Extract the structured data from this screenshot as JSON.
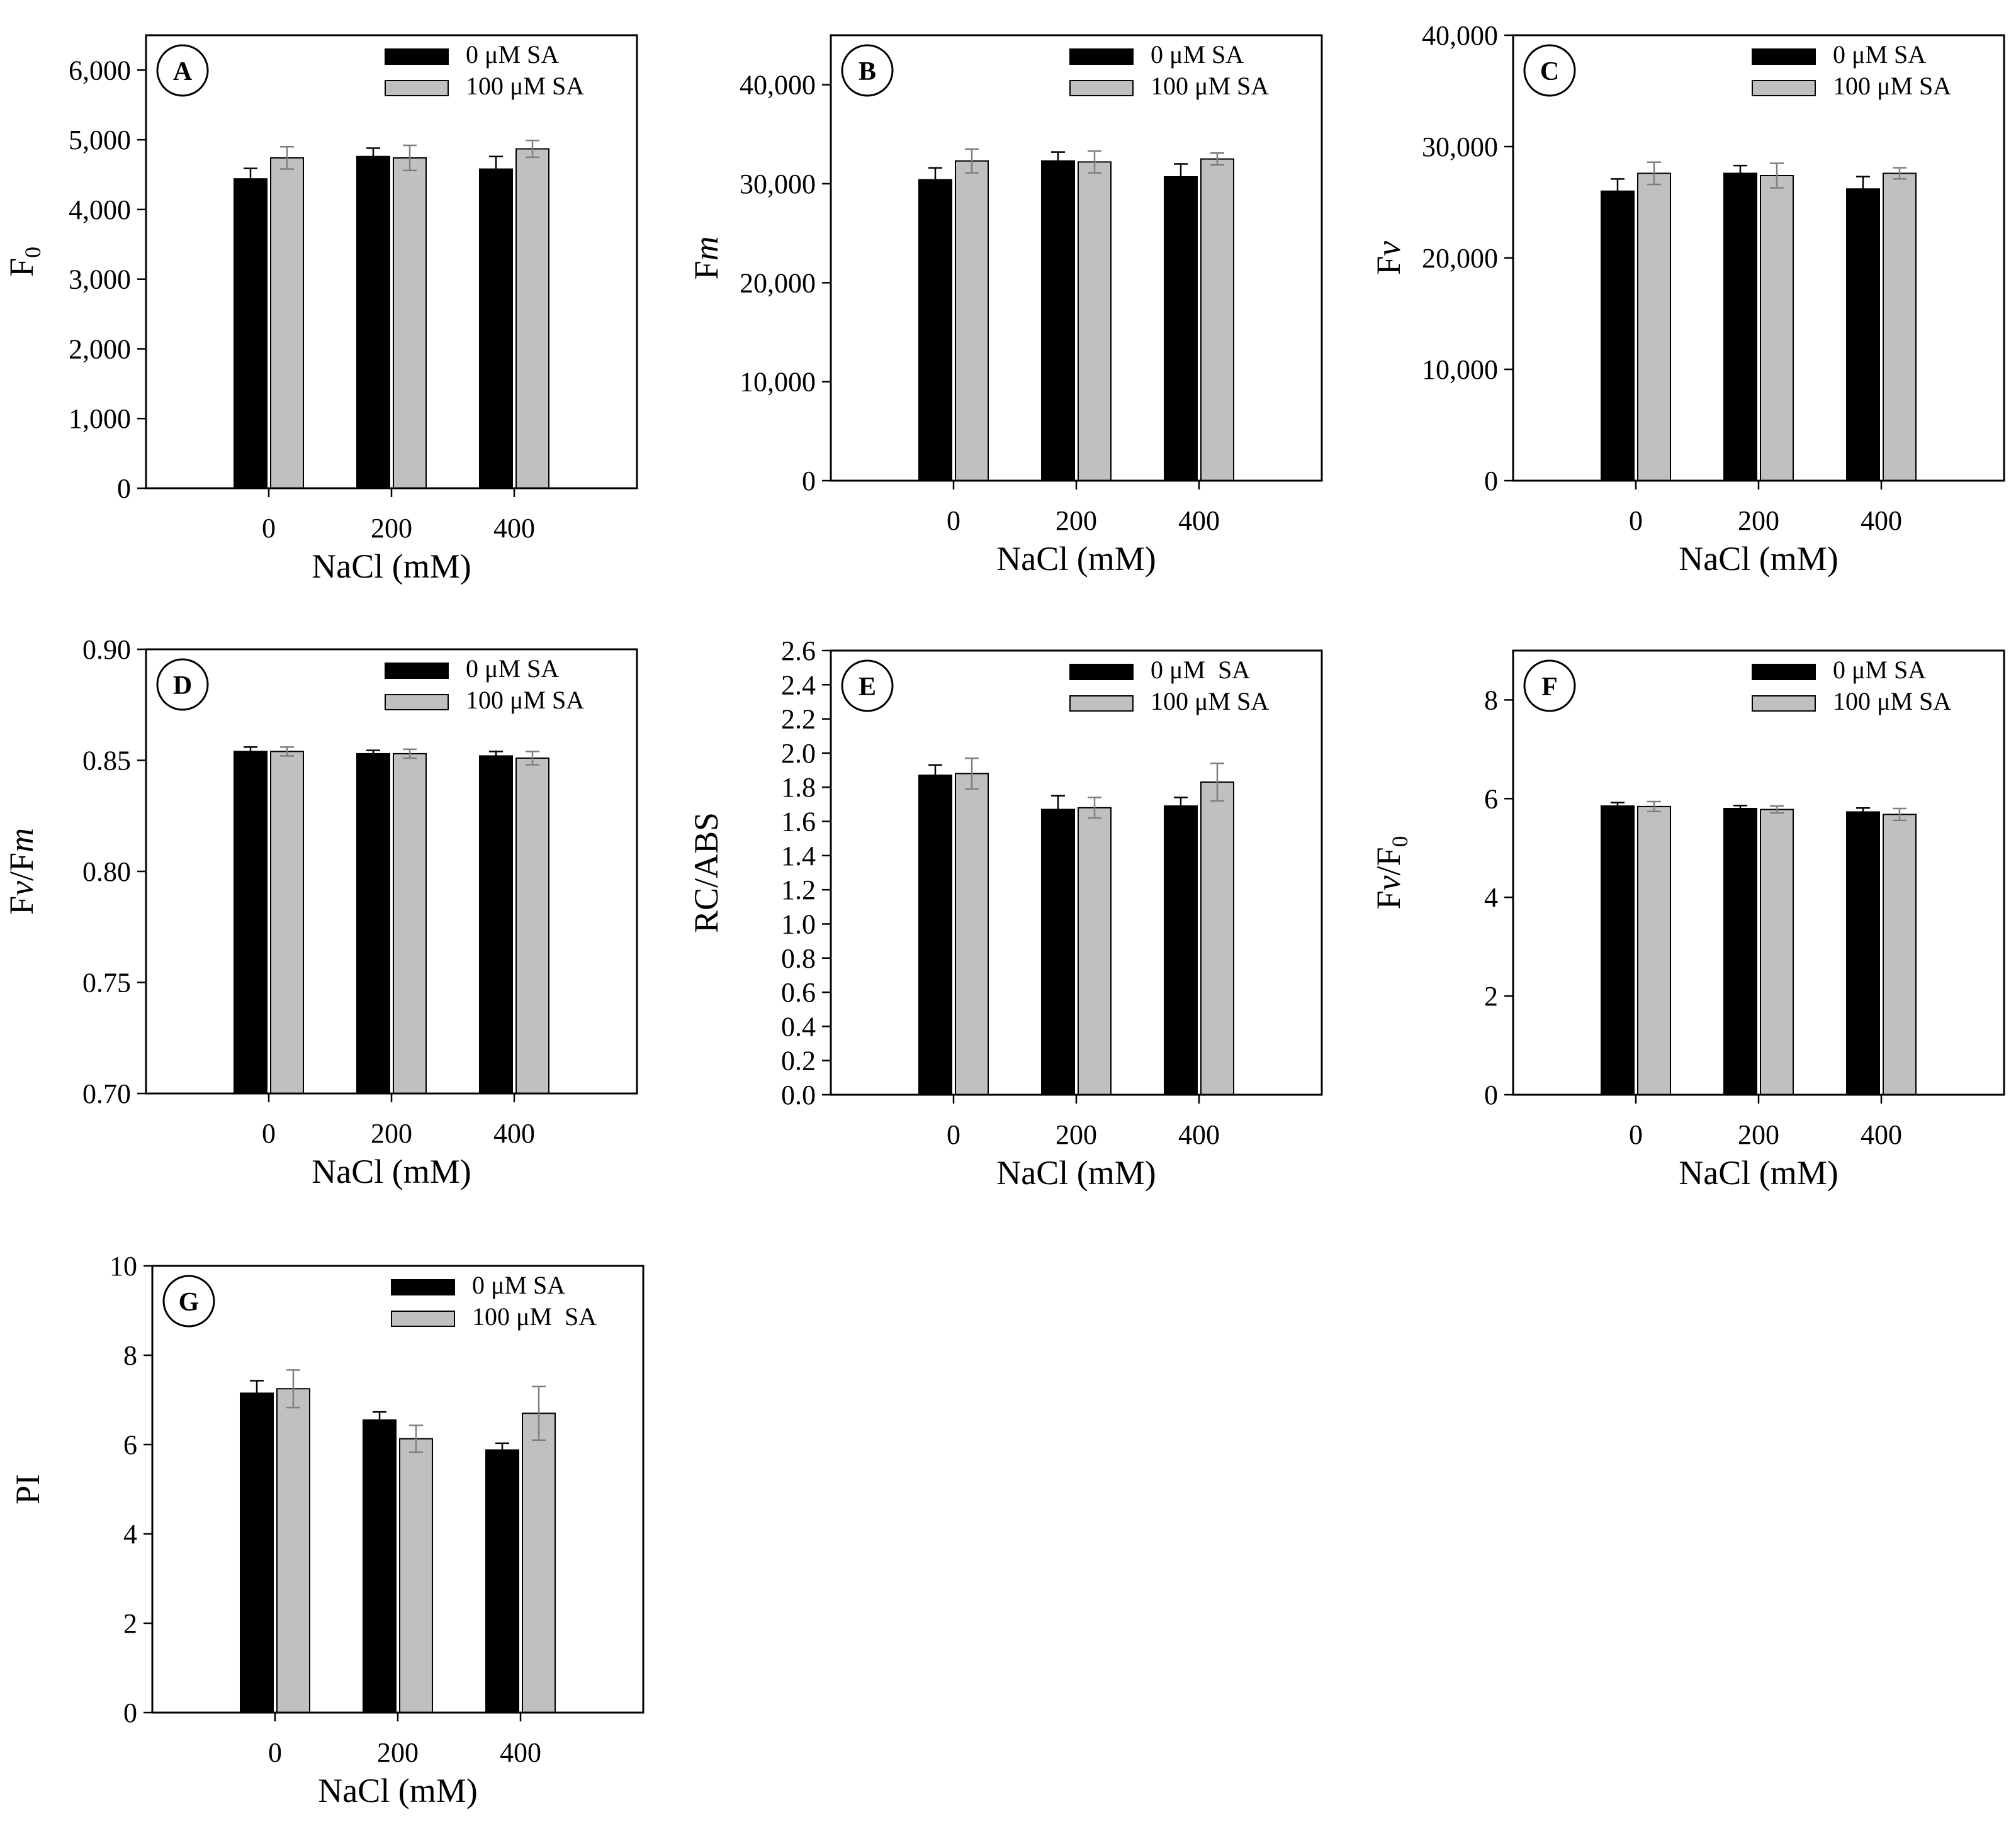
{
  "colors": {
    "series_0": "#000000",
    "series_100": "#c0c0c0",
    "error_bar_0": "#000000",
    "error_bar_100": "#7f7f7f"
  },
  "chart_data": [
    {
      "type": "bar",
      "panel_label": "A",
      "ylabel": "F0",
      "ylabel_main": "F",
      "ylabel_sub": "0",
      "ylabel_italic": false,
      "xlabel": "NaCl (mM)",
      "categories": [
        "0",
        "200",
        "400"
      ],
      "ylim": [
        0,
        6500
      ],
      "yticks": [
        0,
        1000,
        2000,
        3000,
        4000,
        5000,
        6000
      ],
      "ytick_labels": [
        "0",
        "1,000",
        "2,000",
        "3,000",
        "4,000",
        "5,000",
        "6,000"
      ],
      "grid": false,
      "legend_position": "top-right",
      "series": [
        {
          "name": "0 μM SA",
          "values": [
            4440,
            4760,
            4580
          ],
          "errors": [
            150,
            120,
            180
          ]
        },
        {
          "name": "100 μM SA",
          "values": [
            4740,
            4740,
            4870
          ],
          "errors": [
            160,
            180,
            120
          ]
        }
      ]
    },
    {
      "type": "bar",
      "panel_label": "B",
      "ylabel": "Fm",
      "ylabel_main": "F",
      "ylabel_italic_part": "m",
      "xlabel": "NaCl (mM)",
      "categories": [
        "0",
        "200",
        "400"
      ],
      "ylim": [
        0,
        45000
      ],
      "yticks": [
        0,
        10000,
        20000,
        30000,
        40000
      ],
      "ytick_labels": [
        "0",
        "10,000",
        "20,000",
        "30,000",
        "40,000"
      ],
      "grid": false,
      "legend_position": "top-right",
      "series": [
        {
          "name": "0 μM SA",
          "values": [
            30400,
            32300,
            30700
          ],
          "errors": [
            1200,
            900,
            1300
          ]
        },
        {
          "name": "100 μM SA",
          "values": [
            32300,
            32200,
            32500
          ],
          "errors": [
            1200,
            1100,
            600
          ]
        }
      ]
    },
    {
      "type": "bar",
      "panel_label": "C",
      "ylabel": "Fv",
      "ylabel_main": "F",
      "ylabel_italic_part": "v",
      "xlabel": "NaCl (mM)",
      "categories": [
        "0",
        "200",
        "400"
      ],
      "ylim": [
        0,
        40000
      ],
      "yticks": [
        0,
        10000,
        20000,
        30000,
        40000
      ],
      "ytick_labels": [
        "0",
        "10,000",
        "20,000",
        "30,000",
        "40,000"
      ],
      "grid": false,
      "legend_position": "top-right",
      "series": [
        {
          "name": "0 μM SA",
          "values": [
            26000,
            27600,
            26200
          ],
          "errors": [
            1100,
            700,
            1100
          ]
        },
        {
          "name": "100 μM SA",
          "values": [
            27600,
            27400,
            27600
          ],
          "errors": [
            1000,
            1100,
            500
          ]
        }
      ]
    },
    {
      "type": "bar",
      "panel_label": "D",
      "ylabel": "Fv/Fm",
      "xlabel": "NaCl (mM)",
      "categories": [
        "0",
        "200",
        "400"
      ],
      "ylim": [
        0.7,
        0.9
      ],
      "yticks": [
        0.7,
        0.75,
        0.8,
        0.85,
        0.9
      ],
      "ytick_labels": [
        "0.70",
        "0.75",
        "0.80",
        "0.85",
        "0.90"
      ],
      "grid": false,
      "legend_position": "top-right",
      "series": [
        {
          "name": "0 μM SA",
          "values": [
            0.854,
            0.853,
            0.852
          ],
          "errors": [
            0.002,
            0.0015,
            0.002
          ]
        },
        {
          "name": "100 μM SA",
          "values": [
            0.854,
            0.853,
            0.851
          ],
          "errors": [
            0.002,
            0.002,
            0.003
          ]
        }
      ]
    },
    {
      "type": "bar",
      "panel_label": "E",
      "ylabel": "RC/ABS",
      "xlabel": "NaCl (mM)",
      "categories": [
        "0",
        "200",
        "400"
      ],
      "ylim": [
        0,
        2.6
      ],
      "yticks": [
        0,
        0.2,
        0.4,
        0.6,
        0.8,
        1.0,
        1.2,
        1.4,
        1.6,
        1.8,
        2.0,
        2.2,
        2.4,
        2.6
      ],
      "ytick_labels": [
        "0.0",
        "0.2",
        "0.4",
        "0.6",
        "0.8",
        "1.0",
        "1.2",
        "1.4",
        "1.6",
        "1.8",
        "2.0",
        "2.2",
        "2.4",
        "2.6"
      ],
      "grid": false,
      "legend_position": "top-right",
      "series": [
        {
          "name": "0 μM  SA",
          "values": [
            1.87,
            1.67,
            1.69
          ],
          "errors": [
            0.06,
            0.08,
            0.05
          ]
        },
        {
          "name": "100 μM SA",
          "values": [
            1.88,
            1.68,
            1.83
          ],
          "errors": [
            0.09,
            0.06,
            0.11
          ]
        }
      ]
    },
    {
      "type": "bar",
      "panel_label": "F",
      "ylabel": "Fv/F0",
      "xlabel": "NaCl (mM)",
      "categories": [
        "0",
        "200",
        "400"
      ],
      "ylim": [
        0,
        9
      ],
      "yticks": [
        0,
        2,
        4,
        6,
        8
      ],
      "ytick_labels": [
        "0",
        "2",
        "4",
        "6",
        "8"
      ],
      "grid": false,
      "legend_position": "top-right",
      "series": [
        {
          "name": "0 μM SA",
          "values": [
            5.85,
            5.8,
            5.73
          ],
          "errors": [
            0.07,
            0.06,
            0.08
          ]
        },
        {
          "name": "100 μM SA",
          "values": [
            5.84,
            5.78,
            5.68
          ],
          "errors": [
            0.1,
            0.07,
            0.12
          ]
        }
      ]
    },
    {
      "type": "bar",
      "panel_label": "G",
      "ylabel": "PI",
      "xlabel": "NaCl (mM)",
      "categories": [
        "0",
        "200",
        "400"
      ],
      "ylim": [
        0,
        10
      ],
      "yticks": [
        0,
        2,
        4,
        6,
        8,
        10
      ],
      "ytick_labels": [
        "0",
        "2",
        "4",
        "6",
        "8",
        "10"
      ],
      "grid": false,
      "legend_position": "top-right",
      "series": [
        {
          "name": "0 μM SA",
          "values": [
            7.15,
            6.55,
            5.88
          ],
          "errors": [
            0.28,
            0.18,
            0.15
          ]
        },
        {
          "name": "100 μM  SA",
          "values": [
            7.25,
            6.13,
            6.7
          ],
          "errors": [
            0.42,
            0.3,
            0.6
          ]
        }
      ]
    }
  ]
}
